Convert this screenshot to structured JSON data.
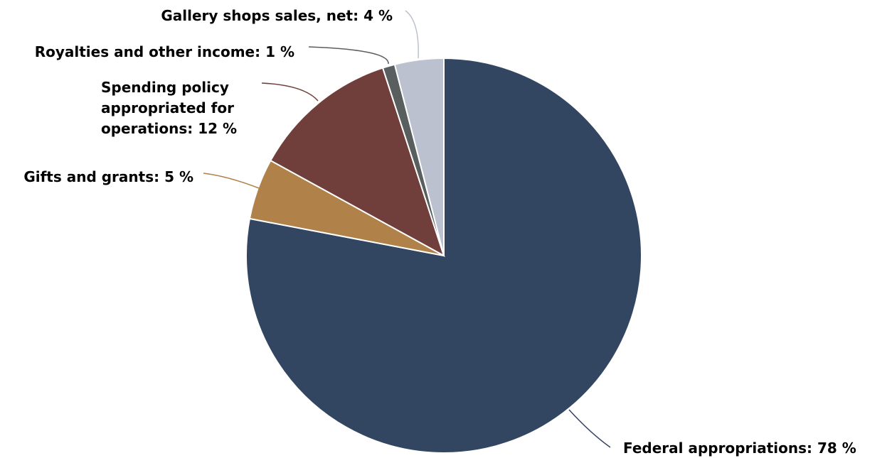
{
  "chart_data": {
    "type": "pie",
    "title": "",
    "start_angle_deg": 0,
    "direction": "clockwise",
    "slices": [
      {
        "label": "Federal appropriations: 78 %",
        "value": 78,
        "color": "#324662",
        "connector_color": "#324662"
      },
      {
        "label": "Gifts and grants: 5 %",
        "value": 5,
        "color": "#b08249",
        "connector_color": "#b08249"
      },
      {
        "label": "Spending policy appropriated for operations: 12 %",
        "value": 12,
        "color": "#713f3b",
        "connector_color": "#713f3b"
      },
      {
        "label": "Royalties and other income: 1 %",
        "value": 1,
        "color": "#595e5e",
        "connector_color": "#595e5e"
      },
      {
        "label": "Gallery shops sales, net: 4 %",
        "value": 4,
        "color": "#bcc1cf",
        "connector_color": "#bcc1cf"
      }
    ]
  }
}
